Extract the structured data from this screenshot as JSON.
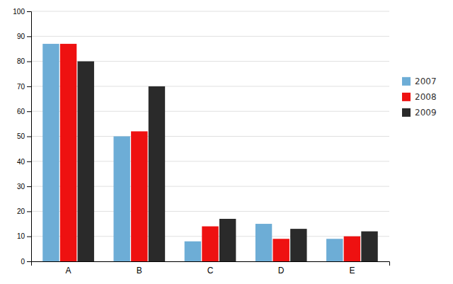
{
  "chart_data": {
    "type": "bar",
    "categories": [
      "A",
      "B",
      "C",
      "D",
      "E"
    ],
    "series": [
      {
        "name": "2007",
        "color": "#6dadd6",
        "values": [
          87,
          50,
          8,
          15,
          9
        ]
      },
      {
        "name": "2008",
        "color": "#ee1111",
        "values": [
          87,
          52,
          14,
          9,
          10
        ]
      },
      {
        "name": "2009",
        "color": "#2a2a2a",
        "values": [
          80,
          70,
          17,
          13,
          12
        ]
      }
    ],
    "ylim": [
      0,
      100
    ],
    "yticks": [
      0,
      10,
      20,
      30,
      40,
      50,
      60,
      70,
      80,
      90,
      100
    ],
    "grid": true,
    "legend": "right"
  }
}
